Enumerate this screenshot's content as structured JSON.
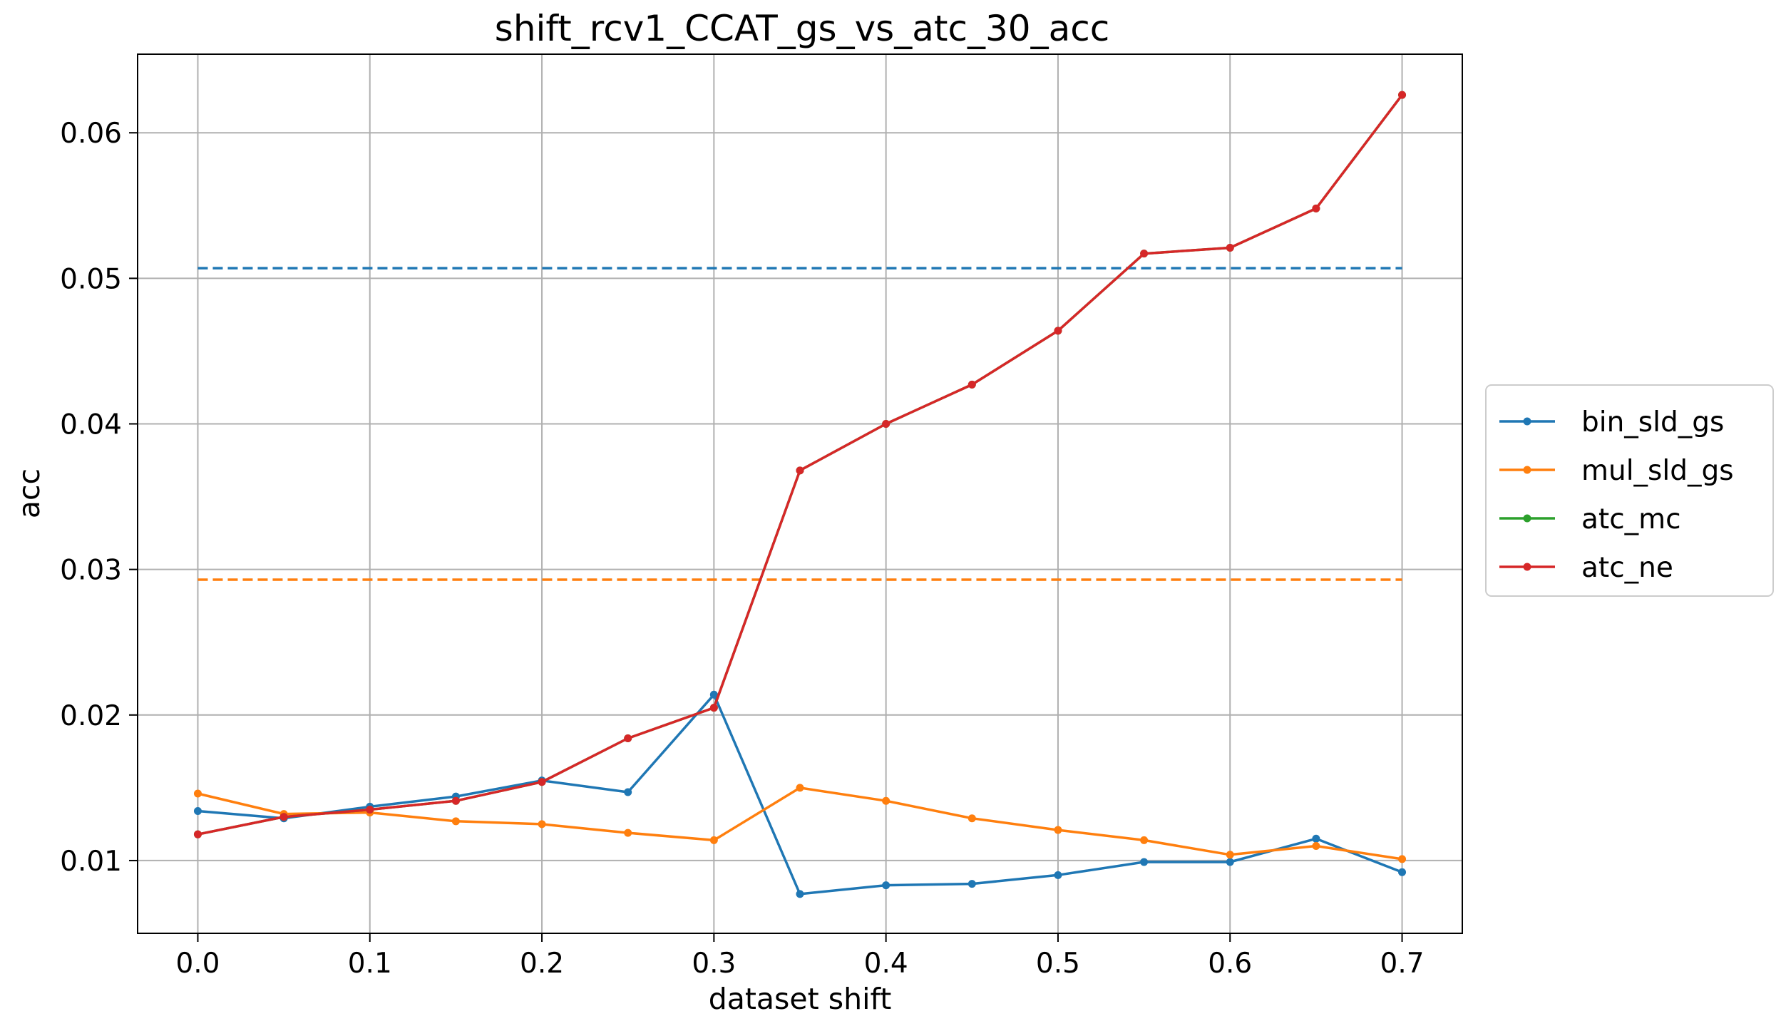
{
  "chart_data": {
    "type": "line",
    "title": "shift_rcv1_CCAT_gs_vs_atc_30_acc",
    "xlabel": "dataset shift",
    "ylabel": "acc",
    "xlim": [
      -0.035,
      0.735
    ],
    "ylim": [
      0.005,
      0.0654
    ],
    "grid": true,
    "legend_position": "right, outside plot",
    "x": [
      0.0,
      0.05,
      0.1,
      0.15,
      0.2,
      0.25,
      0.3,
      0.35,
      0.4,
      0.45,
      0.5,
      0.55,
      0.6,
      0.65,
      0.7
    ],
    "x_ticks": [
      {
        "value": 0.0,
        "label": "0.0"
      },
      {
        "value": 0.1,
        "label": "0.1"
      },
      {
        "value": 0.2,
        "label": "0.2"
      },
      {
        "value": 0.3,
        "label": "0.3"
      },
      {
        "value": 0.4,
        "label": "0.4"
      },
      {
        "value": 0.5,
        "label": "0.5"
      },
      {
        "value": 0.6,
        "label": "0.6"
      },
      {
        "value": 0.7,
        "label": "0.7"
      }
    ],
    "y_ticks": [
      {
        "value": 0.01,
        "label": "0.01"
      },
      {
        "value": 0.02,
        "label": "0.02"
      },
      {
        "value": 0.03,
        "label": "0.03"
      },
      {
        "value": 0.04,
        "label": "0.04"
      },
      {
        "value": 0.05,
        "label": "0.05"
      },
      {
        "value": 0.06,
        "label": "0.06"
      }
    ],
    "series": [
      {
        "name": "bin_sld_gs",
        "color": "#1f77b4",
        "values": [
          0.0134,
          0.0129,
          0.0137,
          0.0144,
          0.0155,
          0.0147,
          0.0214,
          0.0077,
          0.0083,
          0.0084,
          0.009,
          0.0099,
          0.0099,
          0.0115,
          0.0092
        ],
        "reference_line": 0.0507
      },
      {
        "name": "mul_sld_gs",
        "color": "#ff7f0e",
        "values": [
          0.0146,
          0.0132,
          0.0133,
          0.0127,
          0.0125,
          0.0119,
          0.0114,
          0.015,
          0.0141,
          0.0129,
          0.0121,
          0.0114,
          0.0104,
          0.011,
          0.0101
        ],
        "reference_line": 0.0293
      },
      {
        "name": "atc_mc",
        "color": "#2ca02c",
        "values": [
          0.0118,
          0.013,
          0.0135,
          0.0141,
          0.0154,
          0.0184,
          0.0205,
          0.0368,
          0.04,
          0.0427,
          0.0464,
          0.0517,
          0.0521,
          0.0548,
          0.0626
        ]
      },
      {
        "name": "atc_ne",
        "color": "#d62728",
        "values": [
          0.0118,
          0.013,
          0.0135,
          0.0141,
          0.0154,
          0.0184,
          0.0205,
          0.0368,
          0.04,
          0.0427,
          0.0464,
          0.0517,
          0.0521,
          0.0548,
          0.0626
        ]
      }
    ]
  }
}
